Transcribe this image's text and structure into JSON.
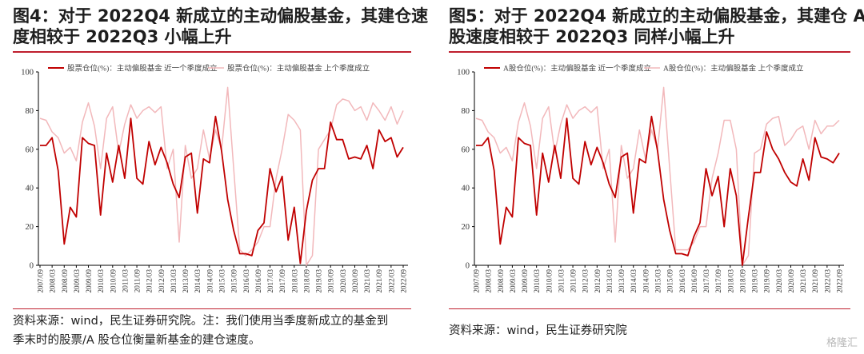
{
  "left": {
    "title_line1": "图4：对于 2022Q4 新成立的主动偏股基金，其建仓速",
    "title_line2": "度相较于 2022Q3 小幅上升",
    "source_line1": "资料来源：wind，民生证券研究院。注：我们使用当季度新成立的基金到",
    "source_line2": "季末时的股票/A 股仓位衡量新基金的建仓速度。"
  },
  "right": {
    "title_line1": "图5：对于 2022Q4 新成立的主动偏股基金，其建仓 A",
    "title_line2": "股速度相较于 2022Q3 同样小幅上升",
    "source_line1": "资料来源：wind，民生证券研究院"
  },
  "watermark": "格隆汇",
  "colors": {
    "accent": "#bf1e2d",
    "dark_series": "#c00000",
    "light_series": "#f2b8bb"
  },
  "chart_data": [
    {
      "type": "line",
      "ylim": [
        0,
        100
      ],
      "yticks": [
        0,
        20,
        40,
        60,
        80,
        100
      ],
      "xtick_labels": [
        "2007/09",
        "2008/03",
        "2008/09",
        "2009/03",
        "2009/09",
        "2010/03",
        "2010/09",
        "2011/03",
        "2011/09",
        "2012/03",
        "2012/09",
        "2013/03",
        "2013/09",
        "2014/03",
        "2014/09",
        "2015/03",
        "2015/09",
        "2016/03",
        "2016/09",
        "2017/03",
        "2017/09",
        "2018/03",
        "2018/09",
        "2019/03",
        "2019/09",
        "2020/03",
        "2020/09",
        "2021/03",
        "2021/09",
        "2022/03",
        "2022/09"
      ],
      "series": [
        {
          "name": "股票仓位(%)：主动偏股基金 近一个季度成立",
          "color": "#c00000",
          "values": [
            62,
            62,
            66,
            49,
            11,
            30,
            25,
            66,
            63,
            62,
            26,
            58,
            43,
            62,
            45,
            76,
            45,
            42,
            64,
            52,
            61,
            53,
            42,
            35,
            56,
            58,
            27,
            55,
            53,
            77,
            59,
            34,
            18,
            6,
            6,
            5,
            18,
            22,
            50,
            38,
            46,
            13,
            30,
            1,
            28,
            44,
            50,
            50,
            74,
            65,
            65,
            55,
            56,
            55,
            62,
            50,
            70,
            64,
            66,
            56,
            61
          ]
        },
        {
          "name": "股票仓位(%)：主动偏股基金 上个季度成立",
          "color": "#f2b8bb",
          "values": [
            76,
            75,
            69,
            66,
            58,
            61,
            54,
            74,
            84,
            72,
            50,
            76,
            82,
            58,
            73,
            83,
            76,
            80,
            82,
            79,
            82,
            50,
            60,
            12,
            62,
            45,
            50,
            70,
            55,
            70,
            60,
            92,
            50,
            8,
            5,
            8,
            12,
            20,
            20,
            45,
            60,
            78,
            75,
            70,
            0,
            5,
            60,
            65,
            70,
            83,
            86,
            85,
            80,
            82,
            75,
            84,
            80,
            75,
            82,
            73,
            80
          ]
        }
      ]
    },
    {
      "type": "line",
      "ylim": [
        0,
        100
      ],
      "yticks": [
        0,
        20,
        40,
        60,
        80,
        100
      ],
      "xtick_labels": [
        "2007/09",
        "2008/03",
        "2008/09",
        "2009/03",
        "2009/09",
        "2010/03",
        "2010/09",
        "2011/03",
        "2011/09",
        "2012/03",
        "2012/09",
        "2013/03",
        "2013/09",
        "2014/03",
        "2014/09",
        "2015/03",
        "2015/09",
        "2016/03",
        "2016/09",
        "2017/03",
        "2017/09",
        "2018/03",
        "2018/09",
        "2019/03",
        "2019/09",
        "2020/03",
        "2020/09",
        "2021/03",
        "2021/09",
        "2022/03",
        "2022/09"
      ],
      "series": [
        {
          "name": "A股仓位(%)：主动偏股基金 近一个季度成立",
          "color": "#c00000",
          "values": [
            62,
            62,
            66,
            49,
            11,
            30,
            25,
            66,
            63,
            62,
            26,
            58,
            43,
            62,
            45,
            76,
            45,
            42,
            64,
            52,
            61,
            53,
            42,
            35,
            56,
            58,
            27,
            55,
            53,
            77,
            59,
            34,
            18,
            6,
            6,
            5,
            15,
            22,
            50,
            36,
            46,
            20,
            50,
            36,
            0,
            25,
            48,
            48,
            69,
            60,
            55,
            48,
            43,
            41,
            55,
            44,
            66,
            56,
            55,
            53,
            58
          ]
        },
        {
          "name": "A股仓位(%)：主动偏股基金 上个季度成立",
          "color": "#f2b8bb",
          "values": [
            76,
            75,
            69,
            66,
            58,
            61,
            54,
            74,
            84,
            72,
            50,
            76,
            82,
            58,
            73,
            83,
            76,
            80,
            82,
            79,
            82,
            50,
            60,
            12,
            62,
            45,
            50,
            70,
            55,
            70,
            60,
            92,
            50,
            8,
            8,
            8,
            12,
            20,
            20,
            45,
            58,
            75,
            75,
            60,
            0,
            5,
            58,
            60,
            73,
            76,
            77,
            62,
            65,
            70,
            72,
            60,
            75,
            68,
            72,
            72,
            75
          ]
        }
      ]
    }
  ]
}
